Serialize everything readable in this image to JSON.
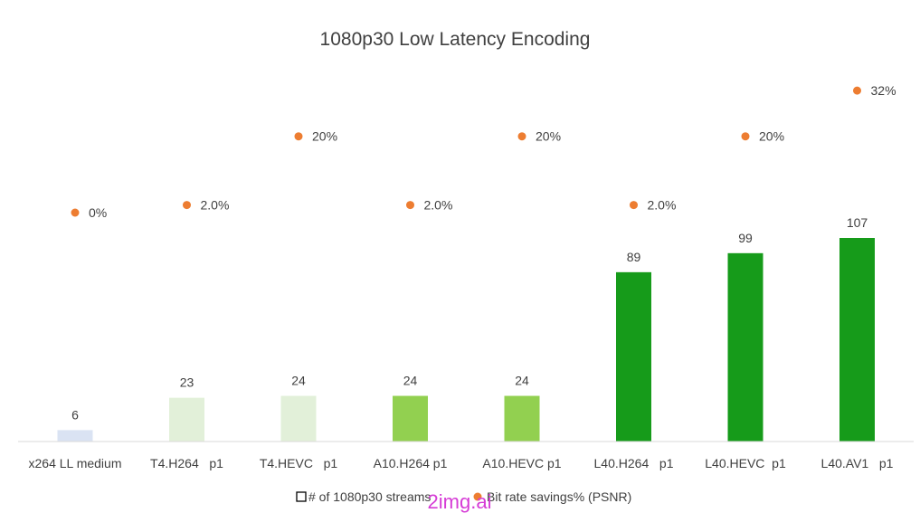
{
  "chart_data": {
    "type": "bar",
    "title": "1080p30 Low Latency Encoding",
    "categories": [
      "x264 LL medium",
      "T4.H264   p1",
      "T4.HEVC   p1",
      "A10.H264 p1",
      "A10.HEVC p1",
      "L40.H264   p1",
      "L40.HEVC  p1",
      "L40.AV1   p1"
    ],
    "series": [
      {
        "name": "# of 1080p30 streams",
        "type": "bar",
        "values": [
          6,
          23,
          24,
          24,
          24,
          89,
          99,
          107
        ],
        "value_labels": [
          "6",
          "23",
          "24",
          "24",
          "24",
          "89",
          "99",
          "107"
        ],
        "colors": [
          "#dae3f3",
          "#e2f0d9",
          "#e2f0d9",
          "#92d050",
          "#92d050",
          "#169b1a",
          "#169b1a",
          "#169b1a"
        ]
      },
      {
        "name": "Bit rate savings% (PSNR)",
        "type": "scatter",
        "values": [
          0,
          2.0,
          20,
          2.0,
          20,
          2.0,
          20,
          32
        ],
        "value_labels": [
          "0%",
          "2.0%",
          "20%",
          "2.0%",
          "20%",
          "2.0%",
          "20%",
          "32%"
        ],
        "color": "#ed7d31"
      }
    ],
    "legend": "bottom",
    "grid": false
  },
  "watermark": "2img.ai"
}
